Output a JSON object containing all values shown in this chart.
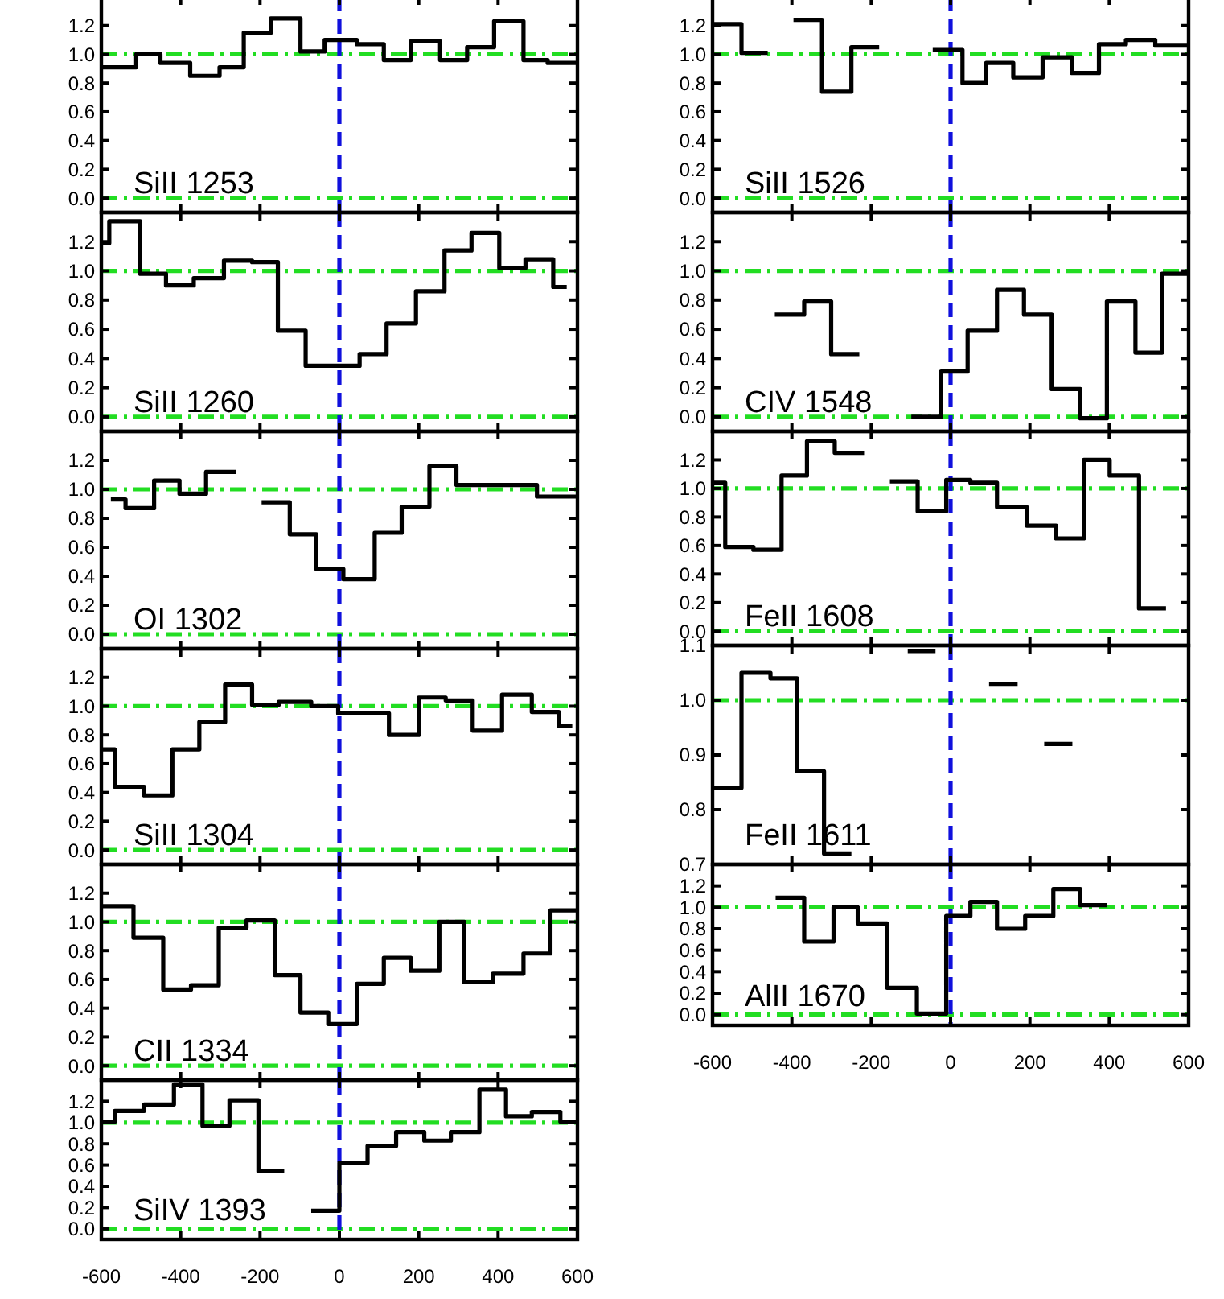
{
  "chart_data": [
    {
      "type": "step",
      "title": "SiII 1253",
      "xlim": [
        -600,
        600
      ],
      "xticks": [
        -600,
        -400,
        -200,
        0,
        200,
        400,
        600
      ],
      "ylim": [
        -0.1,
        1.4
      ],
      "yticks": [
        {
          "value": 0,
          "label": "0.0"
        },
        {
          "value": 0.2,
          "label": "0.2"
        },
        {
          "value": 0.4,
          "label": "0.4"
        },
        {
          "value": 0.6,
          "label": "0.6"
        },
        {
          "value": 0.8,
          "label": "0.8"
        },
        {
          "value": 1,
          "label": "1.0"
        },
        {
          "value": 1.2,
          "label": "1.2"
        }
      ],
      "tick_labels": "y",
      "x": [
        -600,
        -512,
        -451,
        -376,
        -302,
        -241,
        -173,
        -98,
        -37,
        44,
        112,
        180,
        254,
        322,
        390,
        464,
        525,
        600
      ],
      "series": [
        {
          "color": "#000000",
          "values": [
            0.91,
            1.0,
            0.94,
            0.85,
            0.91,
            1.15,
            1.25,
            1.02,
            1.1,
            1.07,
            0.96,
            1.09,
            0.96,
            1.05,
            1.23,
            0.96,
            0.94,
            0.94
          ]
        }
      ],
      "ref_lines": [
        {
          "axis": "y",
          "value": 0,
          "color": "#22dd22",
          "line_style": "dashed"
        },
        {
          "axis": "y",
          "value": 1,
          "color": "#22dd22",
          "line_style": "dashed"
        },
        {
          "axis": "x",
          "value": 0,
          "color": "#1010dd",
          "line_style": "dashed"
        }
      ]
    },
    {
      "type": "step",
      "title": "SiII 1260",
      "xlim": [
        -600,
        600
      ],
      "xticks": [
        -600,
        -400,
        -200,
        0,
        200,
        400,
        600
      ],
      "ylim": [
        -0.1,
        1.4
      ],
      "yticks": [
        {
          "value": 0,
          "label": "0.0"
        },
        {
          "value": 0.2,
          "label": "0.2"
        },
        {
          "value": 0.4,
          "label": "0.4"
        },
        {
          "value": 0.6,
          "label": "0.6"
        },
        {
          "value": 0.8,
          "label": "0.8"
        },
        {
          "value": 1,
          "label": "1.0"
        },
        {
          "value": 1.2,
          "label": "1.2"
        }
      ],
      "tick_labels": "y",
      "x": [
        -600,
        -580,
        -502,
        -437,
        -367,
        -291,
        -220,
        -155,
        -85,
        51,
        119,
        193,
        265,
        333,
        403,
        469,
        539,
        573
      ],
      "series": [
        {
          "color": "#000000",
          "values": [
            1.19,
            1.34,
            0.98,
            0.9,
            0.95,
            1.07,
            1.06,
            0.59,
            0.35,
            0.43,
            0.64,
            0.86,
            1.14,
            1.26,
            1.02,
            1.08,
            0.89,
            0.89
          ]
        }
      ],
      "ref_lines": [
        {
          "axis": "y",
          "value": 0,
          "color": "#22dd22",
          "line_style": "dashed"
        },
        {
          "axis": "y",
          "value": 1,
          "color": "#22dd22",
          "line_style": "dashed"
        },
        {
          "axis": "x",
          "value": 0,
          "color": "#1010dd",
          "line_style": "dashed"
        }
      ]
    },
    {
      "type": "step",
      "title": "OI 1302",
      "xlim": [
        -600,
        600
      ],
      "xticks": [
        -600,
        -400,
        -200,
        0,
        200,
        400,
        600
      ],
      "ylim": [
        -0.1,
        1.4
      ],
      "yticks": [
        {
          "value": 0,
          "label": "0.0"
        },
        {
          "value": 0.2,
          "label": "0.2"
        },
        {
          "value": 0.4,
          "label": "0.4"
        },
        {
          "value": 0.6,
          "label": "0.6"
        },
        {
          "value": 0.8,
          "label": "0.8"
        },
        {
          "value": 1,
          "label": "1.0"
        },
        {
          "value": 1.2,
          "label": "1.2"
        }
      ],
      "tick_labels": "y",
      "series": [
        {
          "color": "#000000",
          "x": [
            -576,
            -539,
            -467,
            -403,
            -336,
            -261
          ],
          "values": [
            0.93,
            0.87,
            1.06,
            0.97,
            1.12,
            1.12
          ]
        },
        {
          "color": "#000000",
          "x": [
            -196,
            -125,
            -58,
            10,
            89,
            157,
            227,
            295,
            498,
            600
          ],
          "values": [
            0.91,
            0.69,
            0.45,
            0.38,
            0.7,
            0.88,
            1.16,
            1.03,
            0.95,
            0.95
          ]
        }
      ],
      "ref_lines": [
        {
          "axis": "y",
          "value": 0,
          "color": "#22dd22",
          "line_style": "dashed"
        },
        {
          "axis": "y",
          "value": 1,
          "color": "#22dd22",
          "line_style": "dashed"
        },
        {
          "axis": "x",
          "value": 0,
          "color": "#1010dd",
          "line_style": "dashed"
        }
      ]
    },
    {
      "type": "step",
      "title": "SiII 1304",
      "xlim": [
        -600,
        600
      ],
      "xticks": [
        -600,
        -400,
        -200,
        0,
        200,
        400,
        600
      ],
      "ylim": [
        -0.1,
        1.4
      ],
      "yticks": [
        {
          "value": 0,
          "label": "0.0"
        },
        {
          "value": 0.2,
          "label": "0.2"
        },
        {
          "value": 0.4,
          "label": "0.4"
        },
        {
          "value": 0.6,
          "label": "0.6"
        },
        {
          "value": 0.8,
          "label": "0.8"
        },
        {
          "value": 1,
          "label": "1.0"
        },
        {
          "value": 1.2,
          "label": "1.2"
        }
      ],
      "tick_labels": "y",
      "x": [
        -600,
        -566,
        -492,
        -421,
        -353,
        -288,
        -220,
        -153,
        -71,
        -3,
        125,
        200,
        268,
        336,
        410,
        485,
        553,
        587
      ],
      "series": [
        {
          "color": "#000000",
          "values": [
            0.7,
            0.44,
            0.38,
            0.7,
            0.89,
            1.15,
            1.01,
            1.03,
            1.0,
            0.95,
            0.8,
            1.06,
            1.04,
            0.83,
            1.08,
            0.96,
            0.86,
            0.86
          ]
        }
      ],
      "ref_lines": [
        {
          "axis": "y",
          "value": 0,
          "color": "#22dd22",
          "line_style": "dashed"
        },
        {
          "axis": "y",
          "value": 1,
          "color": "#22dd22",
          "line_style": "dashed"
        },
        {
          "axis": "x",
          "value": 0,
          "color": "#1010dd",
          "line_style": "dashed"
        }
      ]
    },
    {
      "type": "step",
      "title": "CII 1334",
      "xlim": [
        -600,
        600
      ],
      "xticks": [
        -600,
        -400,
        -200,
        0,
        200,
        400,
        600
      ],
      "ylim": [
        -0.1,
        1.4
      ],
      "yticks": [
        {
          "value": 0,
          "label": "0.0"
        },
        {
          "value": 0.2,
          "label": "0.2"
        },
        {
          "value": 0.4,
          "label": "0.4"
        },
        {
          "value": 0.6,
          "label": "0.6"
        },
        {
          "value": 0.8,
          "label": "0.8"
        },
        {
          "value": 1,
          "label": "1.0"
        },
        {
          "value": 1.2,
          "label": "1.2"
        }
      ],
      "tick_labels": "y",
      "x": [
        -600,
        -519,
        -444,
        -374,
        -304,
        -234,
        -163,
        -98,
        -28,
        44,
        112,
        180,
        252,
        315,
        387,
        464,
        532,
        600
      ],
      "series": [
        {
          "color": "#000000",
          "values": [
            1.11,
            0.89,
            0.53,
            0.56,
            0.96,
            1.01,
            0.63,
            0.37,
            0.29,
            0.57,
            0.75,
            0.66,
            1.0,
            0.58,
            0.64,
            0.78,
            1.08,
            1.08
          ]
        }
      ],
      "ref_lines": [
        {
          "axis": "y",
          "value": 0,
          "color": "#22dd22",
          "line_style": "dashed"
        },
        {
          "axis": "y",
          "value": 1,
          "color": "#22dd22",
          "line_style": "dashed"
        },
        {
          "axis": "x",
          "value": 0,
          "color": "#1010dd",
          "line_style": "dashed"
        }
      ]
    },
    {
      "type": "step",
      "title": "SiIV 1393",
      "xlim": [
        -600,
        600
      ],
      "xticks": [
        -600,
        -400,
        -200,
        0,
        200,
        400,
        600
      ],
      "ylim": [
        -0.1,
        1.4
      ],
      "yticks": [
        {
          "value": 0,
          "label": "0.0"
        },
        {
          "value": 0.2,
          "label": "0.2"
        },
        {
          "value": 0.4,
          "label": "0.4"
        },
        {
          "value": 0.6,
          "label": "0.6"
        },
        {
          "value": 0.8,
          "label": "0.8"
        },
        {
          "value": 1,
          "label": "1.0"
        },
        {
          "value": 1.2,
          "label": "1.2"
        }
      ],
      "series": [
        {
          "color": "#000000",
          "x": [
            -600,
            -566,
            -492,
            -417,
            -345,
            -277,
            -204,
            -139
          ],
          "values": [
            1.01,
            1.11,
            1.17,
            1.36,
            0.97,
            1.21,
            0.54,
            0.54
          ]
        },
        {
          "color": "#000000",
          "x": [
            -71,
            0,
            71,
            143,
            214,
            281,
            353,
            420,
            485,
            557,
            600
          ],
          "values": [
            0.17,
            0.62,
            0.78,
            0.91,
            0.83,
            0.91,
            1.31,
            1.06,
            1.1,
            1.01,
            1.01
          ]
        }
      ],
      "ref_lines": [
        {
          "axis": "y",
          "value": 0,
          "color": "#22dd22",
          "line_style": "dashed"
        },
        {
          "axis": "y",
          "value": 1,
          "color": "#22dd22",
          "line_style": "dashed"
        },
        {
          "axis": "x",
          "value": 0,
          "color": "#1010dd",
          "line_style": "dashed"
        }
      ]
    },
    {
      "type": "step",
      "title": "SiII 1526",
      "xlim": [
        -600,
        600
      ],
      "xticks": [
        -600,
        -400,
        -200,
        0,
        200,
        400,
        600
      ],
      "ylim": [
        -0.1,
        1.4
      ],
      "yticks": [
        {
          "value": 0,
          "label": "0.0"
        },
        {
          "value": 0.2,
          "label": "0.2"
        },
        {
          "value": 0.4,
          "label": "0.4"
        },
        {
          "value": 0.6,
          "label": "0.6"
        },
        {
          "value": 0.8,
          "label": "0.8"
        },
        {
          "value": 1,
          "label": "1.0"
        },
        {
          "value": 1.2,
          "label": "1.2"
        }
      ],
      "tick_labels": "y",
      "series": [
        {
          "color": "#000000",
          "x": [
            -600,
            -527,
            -461
          ],
          "values": [
            1.21,
            1.01,
            1.01
          ]
        },
        {
          "color": "#000000",
          "x": [
            -396,
            -324,
            -250,
            -180
          ],
          "values": [
            1.24,
            0.74,
            1.05,
            1.05
          ]
        },
        {
          "color": "#000000",
          "x": [
            -45,
            30,
            90,
            158,
            232,
            306,
            374,
            442,
            516,
            600
          ],
          "values": [
            1.03,
            0.8,
            0.94,
            0.84,
            0.98,
            0.87,
            1.07,
            1.1,
            1.06,
            1.06
          ]
        }
      ],
      "ref_lines": [
        {
          "axis": "y",
          "value": 0,
          "color": "#22dd22",
          "line_style": "dashed"
        },
        {
          "axis": "y",
          "value": 1,
          "color": "#22dd22",
          "line_style": "dashed"
        },
        {
          "axis": "x",
          "value": 0,
          "color": "#1010dd",
          "line_style": "dashed"
        }
      ]
    },
    {
      "type": "step",
      "title": "CIV 1548",
      "xlim": [
        -600,
        600
      ],
      "xticks": [
        -600,
        -400,
        -200,
        0,
        200,
        400,
        600
      ],
      "ylim": [
        -0.1,
        1.4
      ],
      "yticks": [
        {
          "value": 0,
          "label": "0.0"
        },
        {
          "value": 0.2,
          "label": "0.2"
        },
        {
          "value": 0.4,
          "label": "0.4"
        },
        {
          "value": 0.6,
          "label": "0.6"
        },
        {
          "value": 0.8,
          "label": "0.8"
        },
        {
          "value": 1,
          "label": "1.0"
        },
        {
          "value": 1.2,
          "label": "1.2"
        }
      ],
      "tick_labels": "y",
      "series": [
        {
          "color": "#000000",
          "x": [
            -443,
            -369,
            -301,
            -230
          ],
          "values": [
            0.7,
            0.79,
            0.43,
            0.43
          ]
        },
        {
          "color": "#000000",
          "x": [
            -99,
            -24,
            43,
            117,
            185,
            255,
            327,
            394,
            466,
            533,
            600
          ],
          "values": [
            0.0,
            0.31,
            0.59,
            0.87,
            0.7,
            0.19,
            -0.01,
            0.79,
            0.44,
            0.98,
            0.98
          ]
        }
      ],
      "ref_lines": [
        {
          "axis": "y",
          "value": 0,
          "color": "#22dd22",
          "line_style": "dashed"
        },
        {
          "axis": "y",
          "value": 1,
          "color": "#22dd22",
          "line_style": "dashed"
        },
        {
          "axis": "x",
          "value": 0,
          "color": "#1010dd",
          "line_style": "dashed"
        }
      ]
    },
    {
      "type": "step",
      "title": "FeII 1608",
      "xlim": [
        -600,
        600
      ],
      "xticks": [
        -600,
        -400,
        -200,
        0,
        200,
        400,
        600
      ],
      "ylim": [
        -0.1,
        1.4
      ],
      "yticks": [
        {
          "value": 0,
          "label": "0.0"
        },
        {
          "value": 0.2,
          "label": "0.2"
        },
        {
          "value": 0.4,
          "label": "0.4"
        },
        {
          "value": 0.6,
          "label": "0.6"
        },
        {
          "value": 0.8,
          "label": "0.8"
        },
        {
          "value": 1,
          "label": "1.0"
        },
        {
          "value": 1.2,
          "label": "1.2"
        }
      ],
      "tick_labels": "y",
      "series": [
        {
          "color": "#000000",
          "x": [
            -600,
            -568,
            -497,
            -426,
            -362,
            -292,
            -218
          ],
          "values": [
            1.04,
            0.59,
            0.57,
            1.09,
            1.33,
            1.25,
            1.25
          ]
        },
        {
          "color": "#000000",
          "x": [
            -153,
            -83,
            -11,
            50,
            117,
            192,
            266,
            336,
            401,
            475,
            543
          ],
          "values": [
            1.05,
            0.84,
            1.06,
            1.04,
            0.87,
            0.74,
            0.65,
            1.2,
            1.09,
            0.16,
            0.16
          ]
        }
      ],
      "ref_lines": [
        {
          "axis": "y",
          "value": 0,
          "color": "#22dd22",
          "line_style": "dashed"
        },
        {
          "axis": "y",
          "value": 1,
          "color": "#22dd22",
          "line_style": "dashed"
        },
        {
          "axis": "x",
          "value": 0,
          "color": "#1010dd",
          "line_style": "dashed"
        }
      ]
    },
    {
      "type": "step",
      "title": "FeII 1611",
      "xlim": [
        -600,
        600
      ],
      "xticks": [
        -600,
        -400,
        -200,
        0,
        200,
        400,
        600
      ],
      "ylim": [
        0.7,
        1.1
      ],
      "yticks": [
        0.7,
        0.8,
        0.9,
        {
          "value": 1,
          "label": "1.0"
        },
        1.1
      ],
      "tick_labels": "y",
      "series": [
        {
          "color": "#000000",
          "x": [
            -600,
            -527,
            -454,
            -387,
            -319,
            -250
          ],
          "values": [
            0.84,
            1.05,
            1.04,
            0.87,
            0.72,
            0.72
          ]
        },
        {
          "color": "#000000",
          "x": [
            -108,
            -38
          ],
          "values": [
            1.09,
            1.09
          ]
        },
        {
          "color": "#000000",
          "x": [
            97,
            169
          ],
          "values": [
            1.03,
            1.03
          ]
        },
        {
          "color": "#000000",
          "x": [
            236,
            307
          ],
          "values": [
            0.92,
            0.92
          ]
        }
      ],
      "ref_lines": [
        {
          "axis": "y",
          "value": 1,
          "color": "#22dd22",
          "line_style": "dashed"
        },
        {
          "axis": "x",
          "value": 0,
          "color": "#1010dd",
          "line_style": "dashed"
        }
      ]
    },
    {
      "type": "step",
      "title": "AlII 1670",
      "xlim": [
        -600,
        600
      ],
      "xticks": [
        -600,
        -400,
        -200,
        0,
        200,
        400,
        600
      ],
      "ylim": [
        -0.1,
        1.4
      ],
      "yticks": [
        {
          "value": 0,
          "label": "0.0"
        },
        {
          "value": 0.2,
          "label": "0.2"
        },
        {
          "value": 0.4,
          "label": "0.4"
        },
        {
          "value": 0.6,
          "label": "0.6"
        },
        {
          "value": 0.8,
          "label": "0.8"
        },
        {
          "value": 1,
          "label": "1.0"
        },
        {
          "value": 1.2,
          "label": "1.2"
        }
      ],
      "series": [
        {
          "color": "#000000",
          "x": [
            -441,
            -369,
            -295,
            -234,
            -160,
            -85,
            -11,
            50,
            117,
            188,
            259,
            327,
            394
          ],
          "values": [
            1.09,
            0.68,
            1.0,
            0.85,
            0.25,
            0.01,
            0.92,
            1.05,
            0.8,
            0.92,
            1.17,
            1.02,
            1.02
          ]
        }
      ],
      "ref_lines": [
        {
          "axis": "y",
          "value": 0,
          "color": "#22dd22",
          "line_style": "dashed"
        },
        {
          "axis": "y",
          "value": 1,
          "color": "#22dd22",
          "line_style": "dashed"
        },
        {
          "axis": "x",
          "value": 0,
          "color": "#1010dd",
          "line_style": "dashed"
        }
      ]
    }
  ]
}
